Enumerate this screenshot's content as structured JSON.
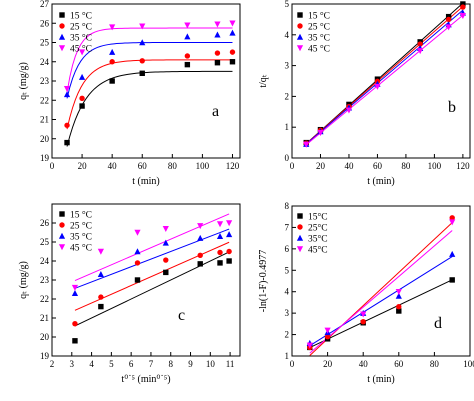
{
  "chart_data": [
    {
      "type": "scatter",
      "panel_label": "a",
      "xlabel": "t (min)",
      "ylabel": "qₜ (mg/g)",
      "xlim": [
        0,
        125
      ],
      "ylim": [
        19,
        27
      ],
      "xticks": [
        0,
        20,
        40,
        60,
        80,
        100,
        120
      ],
      "yticks": [
        19,
        20,
        21,
        22,
        23,
        24,
        25,
        26,
        27
      ],
      "x": [
        10,
        20,
        40,
        60,
        90,
        110,
        120
      ],
      "legend_position": "top-left",
      "series": [
        {
          "name": "15 °C",
          "color": "#000000",
          "marker": "square",
          "values": [
            19.8,
            21.7,
            23.0,
            23.4,
            23.85,
            23.95,
            24.0
          ],
          "fit": {
            "qe": 23.5,
            "k": 0.08,
            "x0": 10,
            "x1": 120
          }
        },
        {
          "name": "25 °C",
          "color": "#ff0000",
          "marker": "circle",
          "values": [
            20.7,
            22.1,
            24.0,
            24.05,
            24.3,
            24.45,
            24.5
          ],
          "fit": {
            "qe": 24.1,
            "k": 0.1,
            "x0": 10,
            "x1": 120
          }
        },
        {
          "name": "35 °C",
          "color": "#0000ff",
          "marker": "triangle",
          "values": [
            22.3,
            23.2,
            24.5,
            25.0,
            25.3,
            25.4,
            25.5
          ],
          "fit": {
            "qe": 25.0,
            "k": 0.12,
            "x0": 10,
            "x1": 120
          }
        },
        {
          "name": "45 °C",
          "color": "#ff00ff",
          "marker": "triangle-down",
          "values": [
            22.6,
            24.5,
            25.8,
            25.85,
            25.9,
            25.95,
            26.0
          ],
          "fit": {
            "qe": 25.75,
            "k": 0.15,
            "x0": 10,
            "x1": 120
          }
        }
      ]
    },
    {
      "type": "scatter",
      "panel_label": "b",
      "xlabel": "t (min)",
      "ylabel": "t/qₜ",
      "xlim": [
        0,
        125
      ],
      "ylim": [
        0,
        5
      ],
      "xticks": [
        0,
        20,
        40,
        60,
        80,
        100,
        120
      ],
      "yticks": [
        0,
        1,
        2,
        3,
        4,
        5
      ],
      "x": [
        10,
        20,
        40,
        60,
        90,
        110,
        120
      ],
      "legend_position": "top-left",
      "series": [
        {
          "name": "15 °C",
          "color": "#000000",
          "marker": "square",
          "values": [
            0.5,
            0.92,
            1.74,
            2.56,
            3.77,
            4.59,
            5.0
          ],
          "fit": {
            "slope": 0.0415,
            "intercept": 0.05,
            "x0": 10,
            "x1": 120
          }
        },
        {
          "name": "25 °C",
          "color": "#ff0000",
          "marker": "circle",
          "values": [
            0.48,
            0.9,
            1.67,
            2.49,
            3.7,
            4.5,
            4.9
          ],
          "fit": {
            "slope": 0.0405,
            "intercept": 0.06,
            "x0": 10,
            "x1": 120
          }
        },
        {
          "name": "35 °C",
          "color": "#0000ff",
          "marker": "triangle",
          "values": [
            0.45,
            0.86,
            1.63,
            2.4,
            3.56,
            4.33,
            4.71
          ],
          "fit": {
            "slope": 0.0395,
            "intercept": 0.06,
            "x0": 10,
            "x1": 120
          }
        },
        {
          "name": "45 °C",
          "color": "#ff00ff",
          "marker": "triangle-down",
          "values": [
            0.44,
            0.82,
            1.55,
            2.32,
            3.48,
            4.25,
            4.62
          ],
          "fit": {
            "slope": 0.0382,
            "intercept": 0.05,
            "x0": 10,
            "x1": 120
          }
        }
      ]
    },
    {
      "type": "scatter",
      "panel_label": "c",
      "xlabel": "t⁰˙⁵ (min⁰˙⁵)",
      "ylabel": "qₜ (mg/g)",
      "xlim": [
        2,
        11.5
      ],
      "ylim": [
        19,
        27
      ],
      "xticks": [
        2,
        3,
        4,
        5,
        6,
        7,
        8,
        9,
        10,
        11
      ],
      "yticks": [
        19,
        20,
        21,
        22,
        23,
        24,
        25,
        26
      ],
      "x": [
        3.16,
        4.47,
        6.32,
        7.75,
        9.49,
        10.49,
        10.95
      ],
      "legend_position": "top-left",
      "series": [
        {
          "name": "15 °C",
          "color": "#000000",
          "marker": "square",
          "values": [
            19.8,
            21.6,
            23.0,
            23.4,
            23.85,
            23.9,
            24.0
          ],
          "fit": {
            "slope": 0.5,
            "intercept": 19.0,
            "x0": 3.16,
            "x1": 10.95
          }
        },
        {
          "name": "25 °C",
          "color": "#ff0000",
          "marker": "circle",
          "values": [
            20.7,
            22.1,
            23.9,
            24.05,
            24.3,
            24.45,
            24.5
          ],
          "fit": {
            "slope": 0.46,
            "intercept": 19.95,
            "x0": 3.16,
            "x1": 10.95
          }
        },
        {
          "name": "35 °C",
          "color": "#0000ff",
          "marker": "triangle",
          "values": [
            22.3,
            23.3,
            24.5,
            24.95,
            25.2,
            25.3,
            25.4
          ],
          "fit": {
            "slope": 0.4,
            "intercept": 21.3,
            "x0": 3.16,
            "x1": 10.95
          }
        },
        {
          "name": "45 °C",
          "color": "#ff00ff",
          "marker": "triangle-down",
          "values": [
            22.6,
            24.5,
            25.5,
            25.7,
            25.85,
            25.95,
            26.0
          ],
          "fit": {
            "slope": 0.45,
            "intercept": 21.55,
            "x0": 3.16,
            "x1": 10.95
          }
        }
      ]
    },
    {
      "type": "scatter",
      "panel_label": "d",
      "xlabel": "t (min)",
      "ylabel": "-ln(1-F)-0.4977",
      "xlim": [
        0,
        100
      ],
      "ylim": [
        1,
        8
      ],
      "xticks": [
        0,
        20,
        40,
        60,
        80,
        100
      ],
      "yticks": [
        1,
        2,
        3,
        4,
        5,
        6,
        7,
        8
      ],
      "x": [
        10,
        20,
        40,
        60,
        90
      ],
      "legend_position": "top-left",
      "series": [
        {
          "name": "15°C",
          "color": "#000000",
          "marker": "square",
          "values": [
            1.4,
            1.8,
            2.55,
            3.1,
            4.55
          ],
          "fit": {
            "slope": 0.0395,
            "intercept": 1.0,
            "x0": 10,
            "x1": 90
          }
        },
        {
          "name": "25°C",
          "color": "#ff0000",
          "marker": "circle",
          "values": [
            1.4,
            1.9,
            2.6,
            3.3,
            7.45
          ],
          "fit": {
            "slope": 0.0775,
            "intercept": 0.25,
            "x0": 10,
            "x1": 90
          }
        },
        {
          "name": "35°C",
          "color": "#0000ff",
          "marker": "triangle",
          "values": [
            1.6,
            2.1,
            3.0,
            3.8,
            5.75
          ],
          "fit": {
            "slope": 0.052,
            "intercept": 0.96,
            "x0": 10,
            "x1": 90
          }
        },
        {
          "name": "45°C",
          "color": "#ff00ff",
          "marker": "triangle-down",
          "values": [
            1.5,
            2.2,
            2.95,
            4.0,
            7.25
          ],
          "fit": {
            "slope": 0.0715,
            "intercept": 0.42,
            "x0": 10,
            "x1": 90
          }
        }
      ]
    }
  ]
}
